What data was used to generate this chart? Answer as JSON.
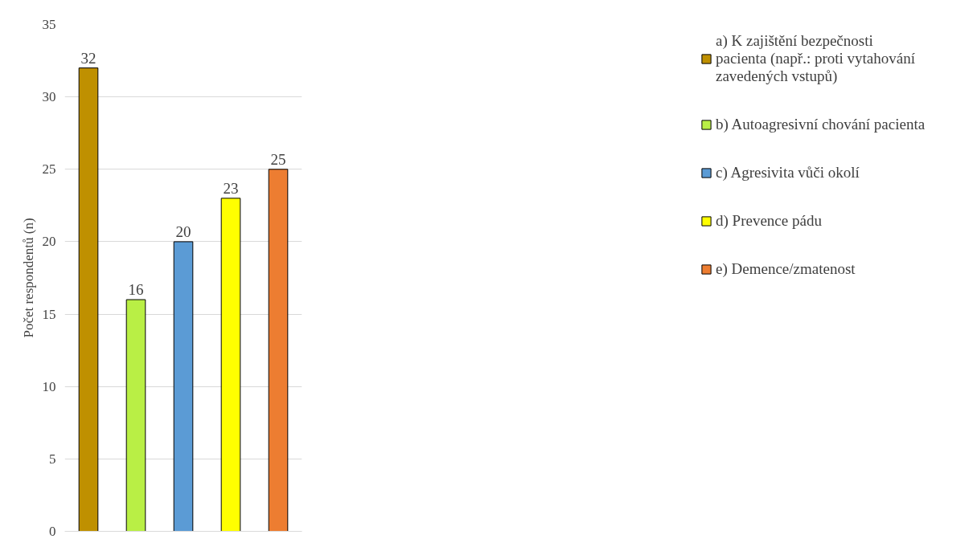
{
  "chart_data": {
    "type": "bar",
    "ylabel": "Počet respondentů (n)",
    "categories": [
      null,
      null,
      null,
      null,
      null
    ],
    "series": [
      {
        "name": "a) K zajištění bezpečnosti pacienta (např.: proti vytahování zavedených vstupů)",
        "color": "#bf9000",
        "values": [
          32,
          null,
          null,
          null,
          null
        ]
      },
      {
        "name": "b) Autoagresivní chování pacienta",
        "color": "#b9ef45",
        "values": [
          null,
          16,
          null,
          null,
          null
        ]
      },
      {
        "name": "c) Agresivita vůči okolí",
        "color": "#5b9bd5",
        "values": [
          null,
          null,
          20,
          null,
          null
        ]
      },
      {
        "name": "d) Prevence pádu",
        "color": "#ffff00",
        "values": [
          null,
          null,
          null,
          23,
          null
        ]
      },
      {
        "name": "e) Demence/zmatenost",
        "color": "#ed7d31",
        "values": [
          null,
          null,
          null,
          null,
          25
        ]
      }
    ],
    "ylim": [
      0,
      35
    ],
    "yticks": [
      0,
      5,
      10,
      15,
      20,
      25,
      30,
      35
    ],
    "grid": "y",
    "legend": "right",
    "tick_labels": "y",
    "data_labels": true
  }
}
